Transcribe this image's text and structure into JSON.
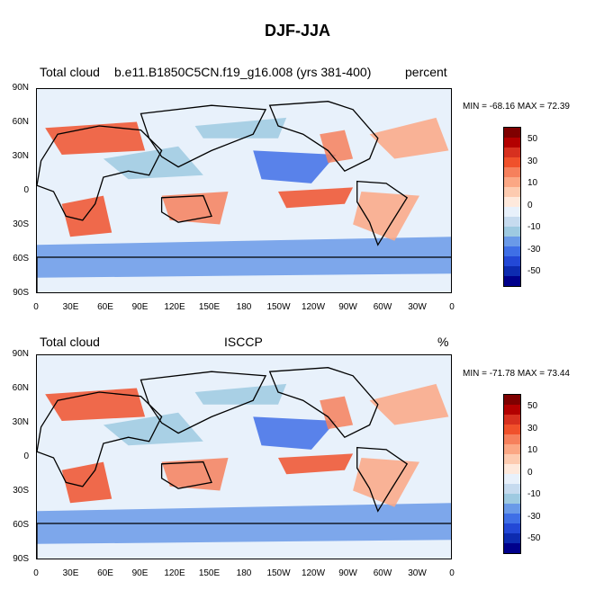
{
  "title": "DJF-JJA",
  "panels": [
    {
      "label_left": "Total cloud",
      "label_center": "b.e11.B1850C5CN.f19_g16.008 (yrs 381-400)",
      "label_right": "percent",
      "minmax": "MIN = -68.16 MAX =  72.39"
    },
    {
      "label_left": "Total cloud",
      "label_center": "ISCCP",
      "label_right": "%",
      "minmax": "MIN = -71.78 MAX =  73.44"
    }
  ],
  "lat_labels": [
    "90N",
    "60N",
    "30N",
    "0",
    "30S",
    "60S",
    "90S"
  ],
  "lon_labels": [
    "0",
    "30E",
    "60E",
    "90E",
    "120E",
    "150E",
    "180",
    "150W",
    "120W",
    "90W",
    "60W",
    "30W",
    "0"
  ],
  "colorbar_labels": [
    "50",
    "30",
    "10",
    "0",
    "-10",
    "-30",
    "-50"
  ],
  "colors": {
    "colorbar": [
      "#7f0000",
      "#b30000",
      "#d7301f",
      "#f0512b",
      "#f6805c",
      "#fba784",
      "#fdcbb0",
      "#fee9dc",
      "#e8f1fb",
      "#c6dbef",
      "#9ecae1",
      "#6a9ae8",
      "#3f6fe6",
      "#2348d6",
      "#0d2bb0",
      "#00008b"
    ],
    "land_outline": "#000000",
    "background": "#ffffff"
  }
}
